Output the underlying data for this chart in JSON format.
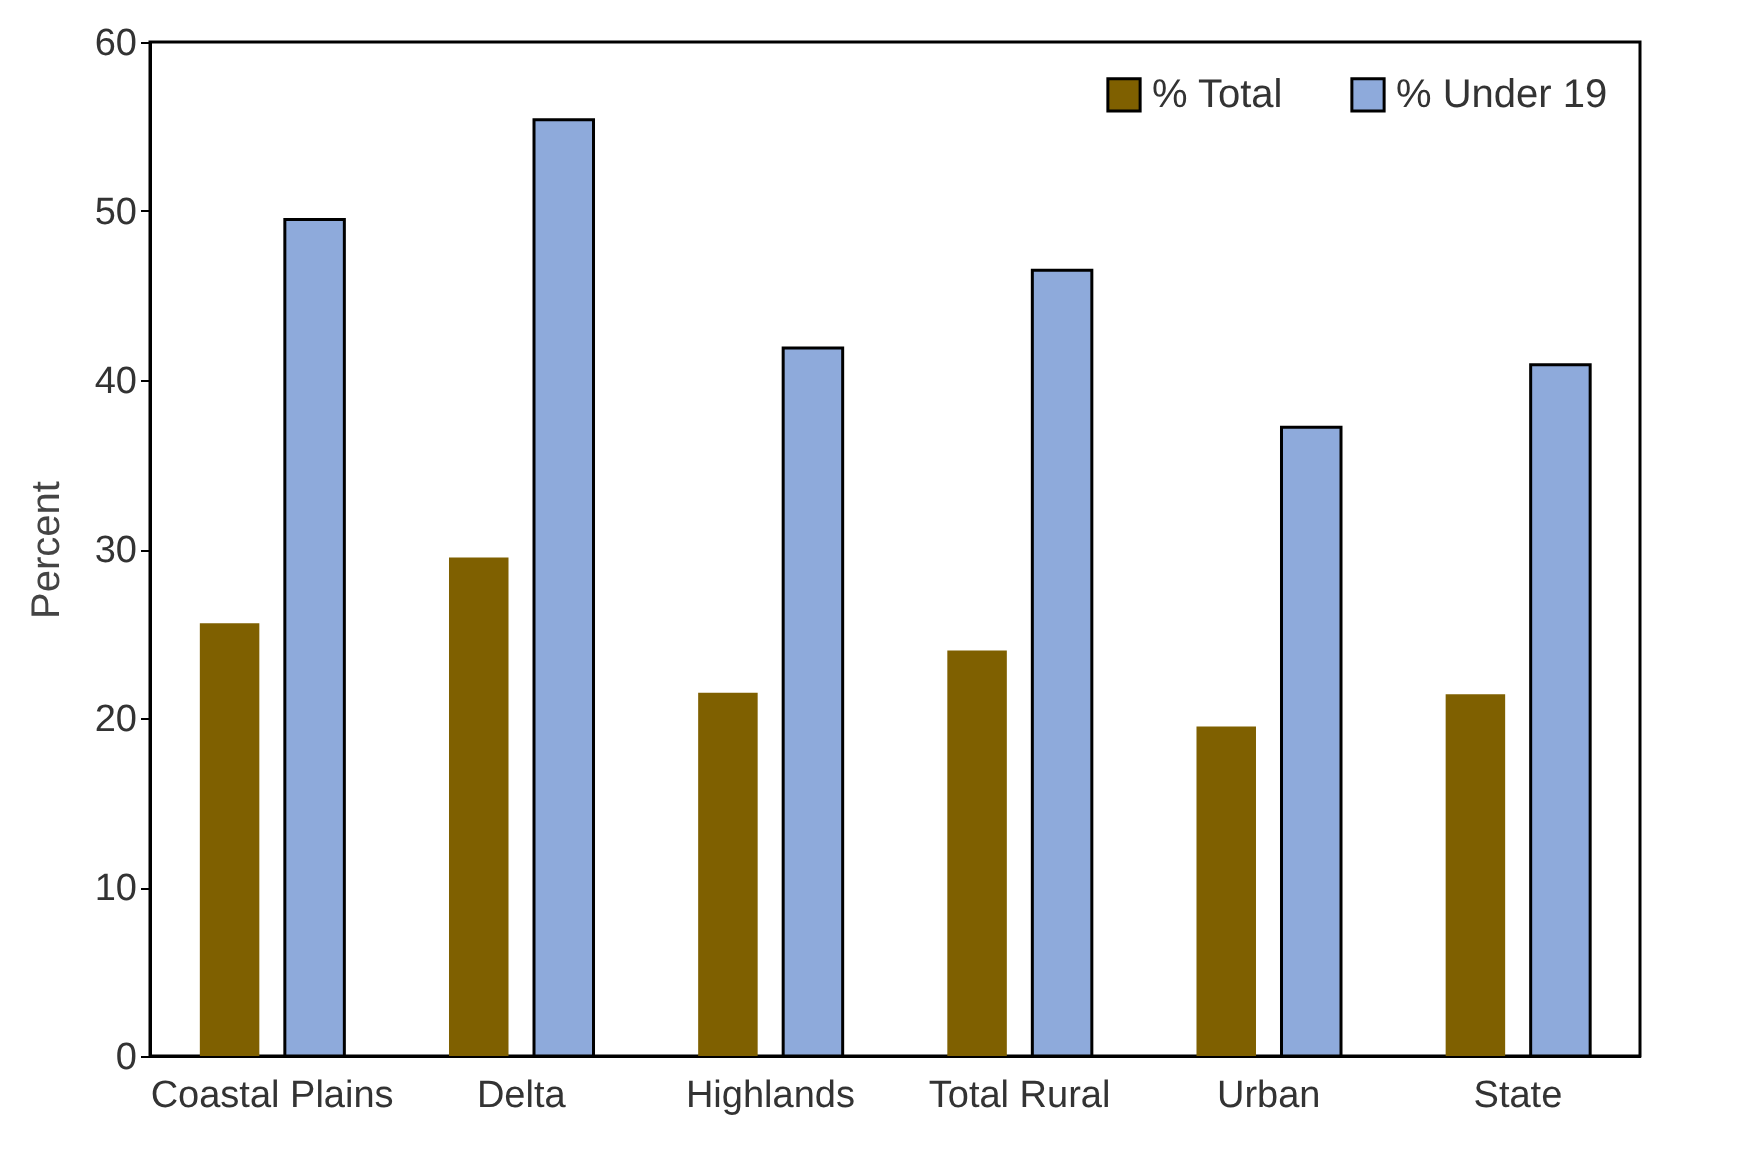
{
  "chart_data": {
    "type": "bar",
    "ylabel": "Percent",
    "categories": [
      "Coastal Plains",
      "Delta",
      "Highlands",
      "Total Rural",
      "Urban",
      "State"
    ],
    "series": [
      {
        "name": "% Total",
        "color": "#7f6000",
        "values": [
          25.6,
          29.5,
          21.5,
          24.0,
          19.5,
          21.4
        ]
      },
      {
        "name": "% Under 19",
        "color": "#8eaadb",
        "values": [
          49.5,
          55.4,
          41.9,
          46.5,
          37.2,
          40.9
        ]
      }
    ],
    "ylim": [
      0,
      60
    ],
    "yticks": [
      0,
      10,
      20,
      30,
      40,
      50,
      60
    ],
    "grid": false,
    "legend": "top right"
  }
}
